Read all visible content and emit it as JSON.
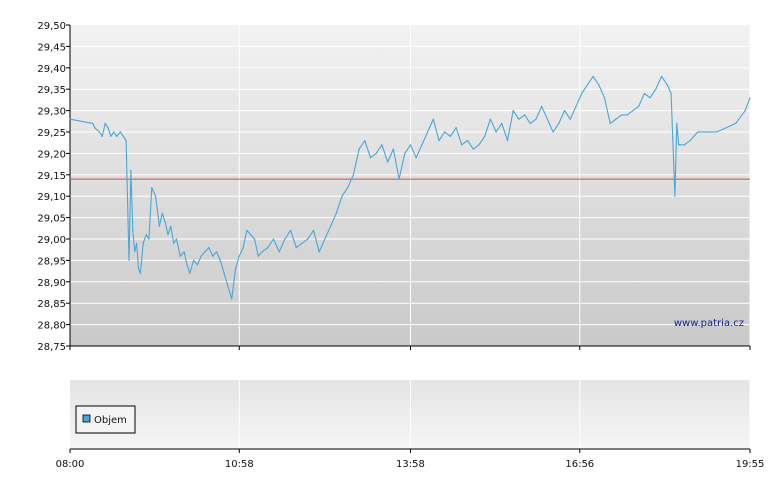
{
  "chart_data": {
    "type": "line",
    "title": "",
    "xlabel": "",
    "ylabel": "",
    "ylim": [
      28.75,
      29.5
    ],
    "y_ticks": [
      "29,50",
      "29,45",
      "29,40",
      "29,35",
      "29,30",
      "29,25",
      "29,20",
      "29,15",
      "29,10",
      "29,05",
      "29,00",
      "28,95",
      "28,90",
      "28,85",
      "28,80",
      "28,75"
    ],
    "x_ticks": [
      "08:00",
      "10:58",
      "13:58",
      "16:56",
      "19:55"
    ],
    "reference_line": 29.14,
    "grid": true,
    "series": [
      {
        "color": "#4aa6d6",
        "x": [
          "08:00",
          "08:24",
          "08:26",
          "08:31",
          "08:34",
          "08:37",
          "08:40",
          "08:43",
          "08:46",
          "08:49",
          "08:53",
          "08:56",
          "08:59",
          "09:02",
          "09:04",
          "09:06",
          "09:08",
          "09:10",
          "09:12",
          "09:14",
          "09:17",
          "09:20",
          "09:23",
          "09:26",
          "09:30",
          "09:34",
          "09:37",
          "09:40",
          "09:43",
          "09:46",
          "09:49",
          "09:52",
          "09:56",
          "10:00",
          "10:03",
          "10:06",
          "10:10",
          "10:14",
          "10:18",
          "10:22",
          "10:26",
          "10:30",
          "10:34",
          "10:38",
          "10:42",
          "10:46",
          "10:50",
          "10:54",
          "10:58",
          "11:02",
          "11:06",
          "11:10",
          "11:14",
          "11:18",
          "11:22",
          "11:28",
          "11:34",
          "11:40",
          "11:46",
          "11:52",
          "11:58",
          "12:04",
          "12:10",
          "12:16",
          "12:22",
          "12:28",
          "12:34",
          "12:40",
          "12:46",
          "12:52",
          "12:58",
          "13:04",
          "13:10",
          "13:16",
          "13:22",
          "13:28",
          "13:34",
          "13:40",
          "13:46",
          "13:52",
          "13:58",
          "14:04",
          "14:10",
          "14:16",
          "14:22",
          "14:28",
          "14:34",
          "14:40",
          "14:46",
          "14:52",
          "14:58",
          "15:04",
          "15:10",
          "15:16",
          "15:22",
          "15:28",
          "15:34",
          "15:40",
          "15:46",
          "15:52",
          "15:58",
          "16:04",
          "16:10",
          "16:16",
          "16:22",
          "16:28",
          "16:34",
          "16:40",
          "16:46",
          "16:52",
          "16:58",
          "17:04",
          "17:10",
          "17:16",
          "17:22",
          "17:28",
          "17:34",
          "17:40",
          "17:46",
          "17:52",
          "17:58",
          "18:04",
          "18:10",
          "18:16",
          "18:22",
          "18:28",
          "18:32",
          "18:36",
          "18:38",
          "18:40",
          "18:42",
          "18:46",
          "18:52",
          "19:00",
          "19:10",
          "19:20",
          "19:30",
          "19:40",
          "19:50",
          "19:55"
        ],
        "values": [
          29.28,
          29.27,
          29.26,
          29.25,
          29.24,
          29.27,
          29.26,
          29.24,
          29.25,
          29.24,
          29.25,
          29.24,
          29.23,
          28.95,
          29.16,
          29.02,
          28.97,
          28.99,
          28.93,
          28.92,
          28.99,
          29.01,
          29.0,
          29.12,
          29.1,
          29.03,
          29.06,
          29.04,
          29.01,
          29.03,
          28.99,
          29.0,
          28.96,
          28.97,
          28.94,
          28.92,
          28.95,
          28.94,
          28.96,
          28.97,
          28.98,
          28.96,
          28.97,
          28.95,
          28.92,
          28.89,
          28.86,
          28.93,
          28.96,
          28.98,
          29.02,
          29.01,
          29.0,
          28.96,
          28.97,
          28.98,
          29.0,
          28.97,
          29.0,
          29.02,
          28.98,
          28.99,
          29.0,
          29.02,
          28.97,
          29.0,
          29.03,
          29.06,
          29.1,
          29.12,
          29.15,
          29.21,
          29.23,
          29.19,
          29.2,
          29.22,
          29.18,
          29.21,
          29.14,
          29.2,
          29.22,
          29.19,
          29.22,
          29.25,
          29.28,
          29.23,
          29.25,
          29.24,
          29.26,
          29.22,
          29.23,
          29.21,
          29.22,
          29.24,
          29.28,
          29.25,
          29.27,
          29.23,
          29.3,
          29.28,
          29.29,
          29.27,
          29.28,
          29.31,
          29.28,
          29.25,
          29.27,
          29.3,
          29.28,
          29.31,
          29.34,
          29.36,
          29.38,
          29.36,
          29.33,
          29.27,
          29.28,
          29.29,
          29.29,
          29.3,
          29.31,
          29.34,
          29.33,
          29.35,
          29.38,
          29.36,
          29.34,
          29.1,
          29.27,
          29.22,
          29.22,
          29.22,
          29.23,
          29.25,
          29.25,
          29.25,
          29.26,
          29.27,
          29.3,
          29.33
        ]
      }
    ],
    "secondary_panel": {
      "legend": "Objem"
    },
    "watermark": "www.patria.cz"
  }
}
